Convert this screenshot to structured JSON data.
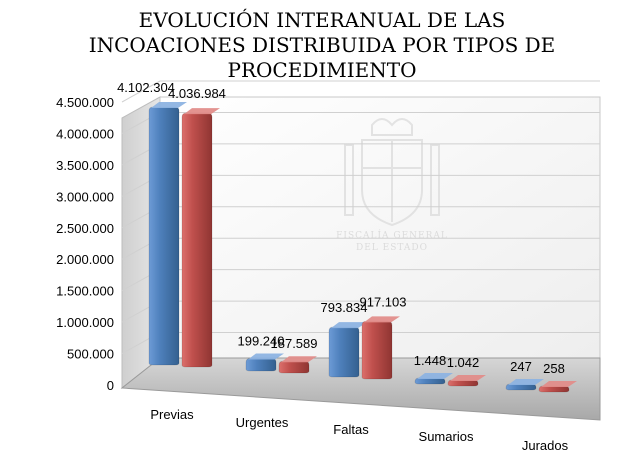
{
  "chart_data": {
    "type": "bar",
    "title_lines": [
      "EVOLUCIÓN INTERANUAL DE LAS",
      "INCOACIONES DISTRIBUIDA POR TIPOS DE",
      "PROCEDIMIENTO"
    ],
    "categories": [
      "Previas",
      "Urgentes",
      "Faltas",
      "Sumarios",
      "Jurados"
    ],
    "series": [
      {
        "color": "#4F81BD",
        "values": [
          4102304,
          199240,
          793834,
          1448,
          247
        ],
        "labels": [
          "4.102.304",
          "199.240",
          "793.834",
          "1.448",
          "247"
        ]
      },
      {
        "color": "#C0504D",
        "values": [
          4036984,
          187589,
          917103,
          1042,
          258
        ],
        "labels": [
          "4.036.984",
          "187.589",
          "917.103",
          "1.042",
          "258"
        ]
      }
    ],
    "ylim": [
      0,
      4500000
    ],
    "yticks": [
      {
        "value": 0,
        "label": "0"
      },
      {
        "value": 500000,
        "label": "500.000"
      },
      {
        "value": 1000000,
        "label": "1.000.000"
      },
      {
        "value": 1500000,
        "label": "1.500.000"
      },
      {
        "value": 2000000,
        "label": "2.000.000"
      },
      {
        "value": 2500000,
        "label": "2.500.000"
      },
      {
        "value": 3000000,
        "label": "3.000.000"
      },
      {
        "value": 3500000,
        "label": "3.500.000"
      },
      {
        "value": 4000000,
        "label": "4.000.000"
      },
      {
        "value": 4500000,
        "label": "4.500.000"
      }
    ],
    "grid": true,
    "perspective": "3d",
    "watermark": {
      "icon": "coat-of-arms-icon",
      "lines": [
        "FISCALÍA GENERAL",
        "DEL ESTADO"
      ]
    }
  }
}
